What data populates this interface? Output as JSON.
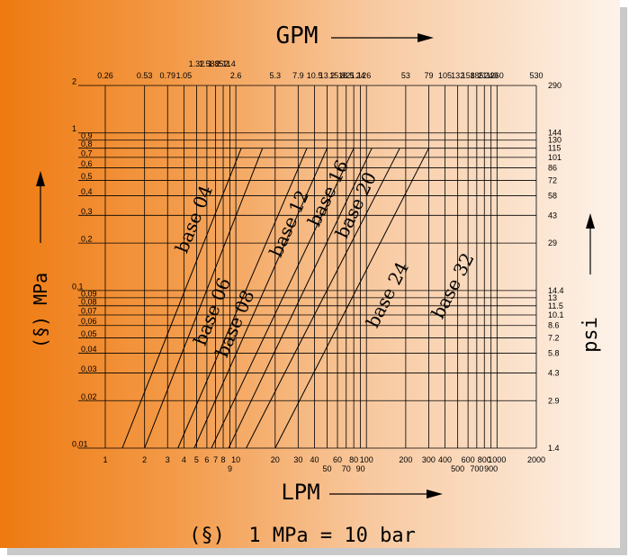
{
  "chart_data": {
    "type": "line",
    "top_title": "GPM",
    "bottom_title": "LPM",
    "left_title": "(§) MPa",
    "right_title": "psi",
    "footnote": "(§)  1 MPa = 10 bar",
    "scale": {
      "x": "log",
      "y": "log"
    },
    "xlim": [
      1,
      2000
    ],
    "ylim": [
      0.01,
      2
    ],
    "grid": true,
    "x_ticks": [
      "1",
      "2",
      "3",
      "4",
      "5",
      "6",
      "7",
      "8",
      "9",
      "10",
      "20",
      "30",
      "40",
      "50",
      "60",
      "70",
      "80",
      "90",
      "100",
      "200",
      "300",
      "400",
      "500",
      "600",
      "700",
      "800",
      "900",
      "1000",
      "2000"
    ],
    "x_tick_values": [
      1,
      2,
      3,
      4,
      5,
      6,
      7,
      8,
      9,
      10,
      20,
      30,
      40,
      50,
      60,
      70,
      80,
      90,
      100,
      200,
      300,
      400,
      500,
      600,
      700,
      800,
      900,
      1000,
      2000
    ],
    "gpm_ticks": [
      "0.26",
      "0.53",
      "0.79",
      "1.05",
      "1.32",
      "1.58",
      "1.85",
      "2.11",
      "2.4",
      "2.6",
      "5.3",
      "7.9",
      "10.5",
      "13.2",
      "15.8",
      "18.5",
      "21.1",
      "24",
      "26",
      "53",
      "79",
      "105",
      "132",
      "158",
      "185",
      "211",
      "240",
      "260",
      "530"
    ],
    "y_ticks": [
      "2",
      "1",
      "0,9",
      "0,8",
      "0,7",
      "0,6",
      "0,5",
      "0,4",
      "0,3",
      "0,2",
      "0,1",
      "0,09",
      "0,08",
      "0,07",
      "0,06",
      "0,05",
      "0,04",
      "0,03",
      "0,02",
      "0,01"
    ],
    "y_tick_values": [
      2,
      1,
      0.9,
      0.8,
      0.7,
      0.6,
      0.5,
      0.4,
      0.3,
      0.2,
      0.1,
      0.09,
      0.08,
      0.07,
      0.06,
      0.05,
      0.04,
      0.03,
      0.02,
      0.01
    ],
    "psi_ticks": [
      "290",
      "144",
      "130",
      "115",
      "101",
      "86",
      "72",
      "58",
      "43",
      "29",
      "14.4",
      "13",
      "11.5",
      "10.1",
      "8.6",
      "7.2",
      "5.8",
      "4.3",
      "2.9",
      "1.4"
    ],
    "series": [
      {
        "name": "base 04",
        "x": [
          1.35,
          11
        ],
        "y": [
          0.01,
          0.8
        ],
        "label_at": [
          4.2,
          0.17
        ]
      },
      {
        "name": "base 06",
        "x": [
          2.0,
          16
        ],
        "y": [
          0.01,
          0.8
        ],
        "label_at": [
          5.8,
          0.044
        ]
      },
      {
        "name": "base 08",
        "x": [
          3.6,
          35
        ],
        "y": [
          0.01,
          0.8
        ],
        "label_at": [
          8.5,
          0.037
        ]
      },
      {
        "name": "base 12",
        "x": [
          4.8,
          50
        ],
        "y": [
          0.01,
          0.8
        ],
        "label_at": [
          22,
          0.16
        ]
      },
      {
        "name": "base 16",
        "x": [
          6.5,
          80
        ],
        "y": [
          0.01,
          0.8
        ],
        "label_at": [
          43,
          0.25
        ]
      },
      {
        "name": "base 20",
        "x": [
          8.8,
          110
        ],
        "y": [
          0.01,
          0.8
        ],
        "label_at": [
          70,
          0.21
        ]
      },
      {
        "name": "base 24",
        "x": [
          12,
          180
        ],
        "y": [
          0.01,
          0.8
        ],
        "label_at": [
          120,
          0.057
        ]
      },
      {
        "name": "base 32",
        "x": [
          20,
          300
        ],
        "y": [
          0.01,
          0.8
        ],
        "label_at": [
          380,
          0.065
        ]
      }
    ]
  }
}
